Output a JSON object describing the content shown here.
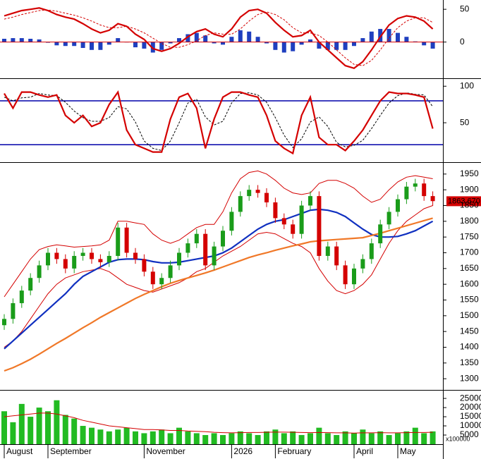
{
  "chart_data": [
    {
      "type": "macd",
      "ylim": [
        -52,
        62
      ],
      "yticks": [
        50,
        0
      ],
      "line_color": "#d40000",
      "hist_color": "#1f3fbf",
      "macd": [
        40,
        44,
        48,
        50,
        52,
        48,
        42,
        38,
        35,
        28,
        20,
        14,
        18,
        28,
        24,
        12,
        4,
        -10,
        -14,
        -10,
        -2,
        8,
        16,
        20,
        12,
        8,
        20,
        38,
        48,
        50,
        44,
        30,
        18,
        8,
        10,
        18,
        0,
        -12,
        -24,
        -36,
        -40,
        -30,
        -12,
        8,
        26,
        36,
        40,
        38,
        32,
        20
      ],
      "signal": [
        35,
        38,
        42,
        45,
        48,
        49,
        47,
        44,
        41,
        37,
        32,
        26,
        22,
        22,
        24,
        20,
        14,
        6,
        -2,
        -8,
        -8,
        -4,
        2,
        10,
        14,
        12,
        12,
        20,
        32,
        42,
        46,
        42,
        34,
        22,
        14,
        14,
        10,
        0,
        -12,
        -24,
        -34,
        -36,
        -28,
        -12,
        6,
        22,
        32,
        37,
        37,
        30
      ],
      "histogram": [
        5,
        6,
        6,
        5,
        4,
        -1,
        -5,
        -6,
        -6,
        -9,
        -12,
        -12,
        -4,
        6,
        0,
        -8,
        -10,
        -16,
        -12,
        -2,
        6,
        12,
        14,
        10,
        -2,
        -4,
        8,
        18,
        16,
        8,
        -2,
        -12,
        -16,
        -14,
        -4,
        4,
        -10,
        -12,
        -12,
        -12,
        -6,
        6,
        16,
        20,
        20,
        14,
        8,
        1,
        -5,
        -10
      ]
    },
    {
      "type": "stochastic",
      "ylim": [
        -2,
        107
      ],
      "yticks": [
        100,
        50
      ],
      "levels": [
        80,
        20
      ],
      "level_color": "#0000aa",
      "line_color": "#d40000",
      "k": [
        90,
        70,
        92,
        92,
        88,
        85,
        88,
        60,
        50,
        60,
        45,
        50,
        75,
        92,
        40,
        20,
        15,
        10,
        10,
        55,
        85,
        90,
        70,
        15,
        55,
        85,
        92,
        92,
        88,
        85,
        60,
        25,
        15,
        8,
        60,
        85,
        30,
        20,
        20,
        12,
        25,
        40,
        60,
        80,
        92,
        90,
        90,
        88,
        85,
        42
      ],
      "d": [
        85,
        80,
        84,
        85,
        90,
        88,
        87,
        78,
        66,
        57,
        52,
        52,
        57,
        72,
        69,
        51,
        25,
        15,
        12,
        25,
        50,
        77,
        82,
        58,
        47,
        52,
        77,
        90,
        91,
        88,
        78,
        57,
        33,
        16,
        28,
        51,
        58,
        45,
        23,
        17,
        19,
        26,
        42,
        60,
        77,
        87,
        91,
        89,
        88,
        72
      ]
    },
    {
      "type": "candlestick",
      "ylim": [
        1269,
        1981
      ],
      "yticks": [
        1300,
        1350,
        1400,
        1450,
        1500,
        1550,
        1600,
        1650,
        1700,
        1750,
        1800,
        1850,
        1900,
        1950
      ],
      "up_color": "#1a9c1a",
      "down_color": "#d40000",
      "open": [
        1470,
        1490,
        1540,
        1580,
        1620,
        1660,
        1700,
        1680,
        1650,
        1690,
        1700,
        1680,
        1670,
        1690,
        1780,
        1700,
        1680,
        1640,
        1600,
        1620,
        1660,
        1700,
        1730,
        1760,
        1660,
        1720,
        1770,
        1830,
        1880,
        1900,
        1890,
        1860,
        1810,
        1790,
        1760,
        1850,
        1880,
        1690,
        1720,
        1660,
        1600,
        1650,
        1680,
        1730,
        1790,
        1830,
        1870,
        1910,
        1920,
        1880
      ],
      "high": [
        1505,
        1555,
        1595,
        1635,
        1675,
        1715,
        1715,
        1695,
        1705,
        1715,
        1715,
        1695,
        1705,
        1795,
        1795,
        1715,
        1695,
        1655,
        1635,
        1675,
        1715,
        1745,
        1775,
        1775,
        1735,
        1785,
        1845,
        1895,
        1915,
        1915,
        1905,
        1875,
        1825,
        1805,
        1865,
        1895,
        1895,
        1735,
        1735,
        1675,
        1665,
        1695,
        1745,
        1805,
        1845,
        1885,
        1925,
        1935,
        1935,
        1895
      ],
      "low": [
        1455,
        1475,
        1525,
        1565,
        1605,
        1645,
        1665,
        1635,
        1635,
        1675,
        1665,
        1655,
        1655,
        1675,
        1685,
        1665,
        1625,
        1585,
        1585,
        1605,
        1645,
        1685,
        1715,
        1645,
        1645,
        1705,
        1755,
        1815,
        1865,
        1875,
        1845,
        1795,
        1775,
        1745,
        1745,
        1835,
        1675,
        1675,
        1645,
        1585,
        1585,
        1635,
        1665,
        1715,
        1775,
        1815,
        1855,
        1895,
        1865,
        1849
      ],
      "close": [
        1490,
        1540,
        1580,
        1620,
        1660,
        1700,
        1680,
        1650,
        1690,
        1700,
        1680,
        1670,
        1690,
        1780,
        1700,
        1680,
        1640,
        1600,
        1620,
        1660,
        1700,
        1730,
        1760,
        1660,
        1720,
        1770,
        1830,
        1880,
        1900,
        1890,
        1860,
        1810,
        1790,
        1760,
        1850,
        1880,
        1690,
        1720,
        1660,
        1600,
        1650,
        1680,
        1730,
        1790,
        1830,
        1870,
        1910,
        1920,
        1880,
        1864
      ],
      "overlays": [
        {
          "color": "#d40000",
          "values": [
            1560,
            1600,
            1640,
            1680,
            1710,
            1720,
            1725,
            1722,
            1718,
            1720,
            1722,
            1725,
            1740,
            1800,
            1800,
            1795,
            1790,
            1760,
            1740,
            1730,
            1740,
            1760,
            1780,
            1790,
            1790,
            1830,
            1890,
            1935,
            1955,
            1960,
            1950,
            1930,
            1905,
            1890,
            1885,
            1890,
            1920,
            1930,
            1930,
            1920,
            1905,
            1880,
            1860,
            1870,
            1900,
            1925,
            1940,
            1945,
            1940,
            1935
          ]
        },
        {
          "color": "#d40000",
          "values": [
            1400,
            1420,
            1450,
            1490,
            1530,
            1570,
            1600,
            1620,
            1630,
            1640,
            1645,
            1650,
            1640,
            1620,
            1600,
            1590,
            1580,
            1575,
            1585,
            1595,
            1605,
            1620,
            1640,
            1650,
            1670,
            1690,
            1705,
            1720,
            1740,
            1760,
            1765,
            1760,
            1745,
            1730,
            1720,
            1700,
            1650,
            1610,
            1580,
            1570,
            1580,
            1600,
            1630,
            1680,
            1730,
            1770,
            1800,
            1820,
            1840,
            1850
          ]
        },
        {
          "color": "#1030c0",
          "values": [
            1395,
            1420,
            1445,
            1470,
            1495,
            1520,
            1545,
            1570,
            1600,
            1625,
            1640,
            1655,
            1670,
            1678,
            1680,
            1680,
            1678,
            1672,
            1668,
            1668,
            1670,
            1675,
            1680,
            1685,
            1690,
            1700,
            1715,
            1735,
            1755,
            1775,
            1790,
            1800,
            1805,
            1815,
            1825,
            1835,
            1838,
            1835,
            1828,
            1815,
            1795,
            1775,
            1758,
            1750,
            1750,
            1752,
            1760,
            1770,
            1785,
            1800
          ]
        },
        {
          "color": "#f07828",
          "values": [
            1325,
            1335,
            1348,
            1362,
            1378,
            1395,
            1412,
            1428,
            1445,
            1462,
            1478,
            1495,
            1510,
            1525,
            1540,
            1555,
            1568,
            1580,
            1592,
            1603,
            1612,
            1620,
            1628,
            1636,
            1645,
            1655,
            1665,
            1675,
            1685,
            1693,
            1700,
            1708,
            1715,
            1722,
            1728,
            1735,
            1738,
            1740,
            1742,
            1744,
            1746,
            1748,
            1755,
            1762,
            1770,
            1778,
            1786,
            1794,
            1802,
            1810
          ]
        }
      ],
      "last_value": {
        "value": 1863.67,
        "label": "1863.670"
      },
      "last_color": "#d40000"
    },
    {
      "type": "bar",
      "ylim": [
        0,
        28500
      ],
      "yticks": [
        5000,
        10000,
        15000,
        20000,
        25000
      ],
      "color": "#22bb22",
      "ma_color": "#d40000",
      "unit_label": "x100000",
      "values": [
        18000,
        12000,
        22000,
        15000,
        20000,
        18000,
        24000,
        16000,
        14000,
        10000,
        9000,
        8000,
        7000,
        8000,
        9000,
        7000,
        6000,
        7000,
        8000,
        6000,
        9000,
        7000,
        6000,
        5000,
        6000,
        5000,
        6000,
        7000,
        6000,
        5000,
        7000,
        8000,
        6000,
        7000,
        5000,
        6000,
        9000,
        6000,
        5000,
        7000,
        6000,
        8000,
        6000,
        7000,
        5000,
        6000,
        7000,
        9000,
        6000,
        7000
      ],
      "ma": [
        15000,
        15500,
        16000,
        16500,
        17000,
        17000,
        16500,
        15500,
        14500,
        13000,
        12000,
        11000,
        10000,
        9500,
        9000,
        8500,
        8000,
        8000,
        7800,
        7500,
        7500,
        7200,
        7000,
        6800,
        6500,
        6300,
        6200,
        6300,
        6400,
        6400,
        6500,
        6600,
        6600,
        6500,
        6400,
        6300,
        6400,
        6300,
        6200,
        6200,
        6100,
        6200,
        6200,
        6300,
        6200,
        6200,
        6300,
        6400,
        6400,
        6500
      ],
      "categories": [
        "August",
        null,
        null,
        null,
        null,
        "September",
        null,
        null,
        null,
        null,
        null,
        null,
        null,
        null,
        null,
        null,
        "November",
        null,
        null,
        null,
        null,
        null,
        null,
        null,
        null,
        null,
        "2026",
        null,
        null,
        null,
        null,
        "February",
        null,
        null,
        null,
        null,
        null,
        null,
        null,
        null,
        "April",
        null,
        null,
        null,
        null,
        "May",
        null,
        null,
        null,
        null
      ]
    }
  ]
}
